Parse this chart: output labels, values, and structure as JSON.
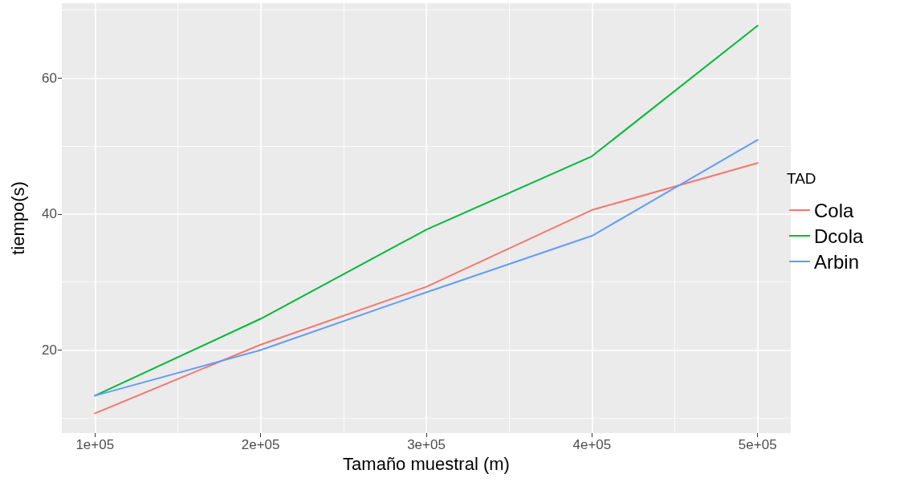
{
  "chart_data": {
    "type": "line",
    "xlabel": "Tamaño muestral (m)",
    "ylabel": "tiempo(s)",
    "legend_title": "TAD",
    "legend": "right",
    "grid": true,
    "marker": "none",
    "line_style": "solid",
    "x": [
      100000,
      200000,
      300000,
      400000,
      500000
    ],
    "xlim": [
      80000,
      520000
    ],
    "xticks": [
      {
        "value": 100000,
        "label": "1e+05"
      },
      {
        "value": 150000,
        "label": null
      },
      {
        "value": 200000,
        "label": "2e+05"
      },
      {
        "value": 250000,
        "label": null
      },
      {
        "value": 300000,
        "label": "3e+05"
      },
      {
        "value": 350000,
        "label": null
      },
      {
        "value": 400000,
        "label": "4e+05"
      },
      {
        "value": 450000,
        "label": null
      },
      {
        "value": 500000,
        "label": "5e+05"
      }
    ],
    "ylim": [
      7.8,
      71
    ],
    "yticks": [
      {
        "value": 10,
        "label": null
      },
      20,
      {
        "value": 30,
        "label": null
      },
      40,
      {
        "value": 50,
        "label": null
      },
      60,
      {
        "value": 70,
        "label": null
      }
    ],
    "series": [
      {
        "name": "Cola",
        "color": "#f8766d",
        "values": [
          10.7,
          20.8,
          29.3,
          40.6,
          47.5
        ]
      },
      {
        "name": "Dcola",
        "color": "#00ba38",
        "values": [
          13.3,
          24.6,
          37.7,
          48.5,
          67.7
        ]
      },
      {
        "name": "Arbin",
        "color": "#619cff",
        "values": [
          13.3,
          20.0,
          28.5,
          36.8,
          50.9
        ]
      }
    ]
  }
}
